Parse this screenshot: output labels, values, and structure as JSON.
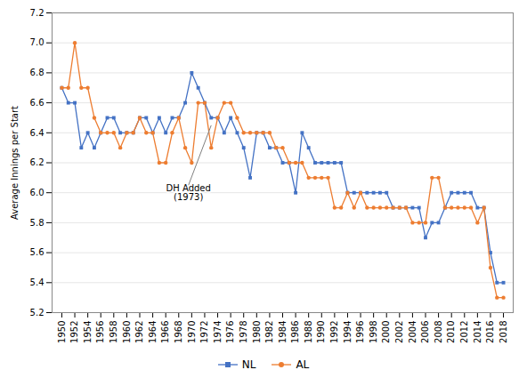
{
  "chart_data": {
    "type": "line",
    "x": [
      1950,
      1951,
      1952,
      1953,
      1954,
      1955,
      1956,
      1957,
      1958,
      1959,
      1960,
      1961,
      1962,
      1963,
      1964,
      1965,
      1966,
      1967,
      1968,
      1969,
      1970,
      1971,
      1972,
      1973,
      1974,
      1975,
      1976,
      1977,
      1978,
      1979,
      1980,
      1981,
      1982,
      1983,
      1984,
      1985,
      1986,
      1987,
      1988,
      1989,
      1990,
      1991,
      1992,
      1993,
      1994,
      1995,
      1996,
      1997,
      1998,
      1999,
      2000,
      2001,
      2002,
      2003,
      2004,
      2005,
      2006,
      2007,
      2008,
      2009,
      2010,
      2011,
      2012,
      2013,
      2014,
      2015,
      2016,
      2017,
      2018
    ],
    "series": [
      {
        "name": "NL",
        "color": "#4472c4",
        "marker": "square",
        "values": [
          6.7,
          6.6,
          6.6,
          6.3,
          6.4,
          6.3,
          6.4,
          6.5,
          6.5,
          6.4,
          6.4,
          6.4,
          6.5,
          6.5,
          6.4,
          6.5,
          6.4,
          6.5,
          6.5,
          6.6,
          6.8,
          6.7,
          6.6,
          6.5,
          6.5,
          6.4,
          6.5,
          6.4,
          6.3,
          6.1,
          6.4,
          6.4,
          6.3,
          6.3,
          6.2,
          6.2,
          6.0,
          6.4,
          6.3,
          6.2,
          6.2,
          6.2,
          6.2,
          6.2,
          6.0,
          6.0,
          6.0,
          6.0,
          6.0,
          6.0,
          6.0,
          5.9,
          5.9,
          5.9,
          5.9,
          5.9,
          5.7,
          5.8,
          5.8,
          5.9,
          6.0,
          6.0,
          6.0,
          6.0,
          5.9,
          5.9,
          5.6,
          5.4,
          5.4
        ]
      },
      {
        "name": "AL",
        "color": "#ed7d31",
        "marker": "circle",
        "values": [
          6.7,
          6.7,
          7.0,
          6.7,
          6.7,
          6.5,
          6.4,
          6.4,
          6.4,
          6.3,
          6.4,
          6.4,
          6.5,
          6.4,
          6.4,
          6.2,
          6.2,
          6.4,
          6.5,
          6.3,
          6.2,
          6.6,
          6.6,
          6.3,
          6.5,
          6.6,
          6.6,
          6.5,
          6.4,
          6.4,
          6.4,
          6.4,
          6.4,
          6.3,
          6.3,
          6.2,
          6.2,
          6.2,
          6.1,
          6.1,
          6.1,
          6.1,
          5.9,
          5.9,
          6.0,
          5.9,
          6.0,
          5.9,
          5.9,
          5.9,
          5.9,
          5.9,
          5.9,
          5.9,
          5.8,
          5.8,
          5.8,
          6.1,
          6.1,
          5.9,
          5.9,
          5.9,
          5.9,
          5.9,
          5.8,
          5.9,
          5.5,
          5.3,
          5.3
        ]
      }
    ],
    "ylabel": "Average Innings per Start",
    "ylim": [
      5.2,
      7.2
    ],
    "yticks": [
      5.2,
      5.4,
      5.6,
      5.8,
      {
        "value": 6.0,
        "label": "6.0"
      },
      6.2,
      6.4,
      6.6,
      6.8,
      {
        "value": 7.0,
        "label": "7.0"
      },
      7.2
    ],
    "xlim": [
      1948.5,
      2019.5
    ],
    "xticks": [
      1950,
      1952,
      1954,
      1956,
      1958,
      1960,
      1962,
      1964,
      1966,
      1968,
      1970,
      1972,
      1974,
      1976,
      1978,
      1980,
      1982,
      1984,
      1986,
      1988,
      1990,
      1992,
      1994,
      1996,
      1998,
      2000,
      2002,
      2004,
      2006,
      2008,
      2010,
      2012,
      2014,
      2016,
      2018
    ],
    "annotations": [
      {
        "text": "DH Added\n(1973)",
        "x": 1969.5,
        "y": 6.05,
        "arrow_x": 1973,
        "arrow_y": 6.45
      }
    ],
    "grid": true,
    "legend": "bottom"
  }
}
